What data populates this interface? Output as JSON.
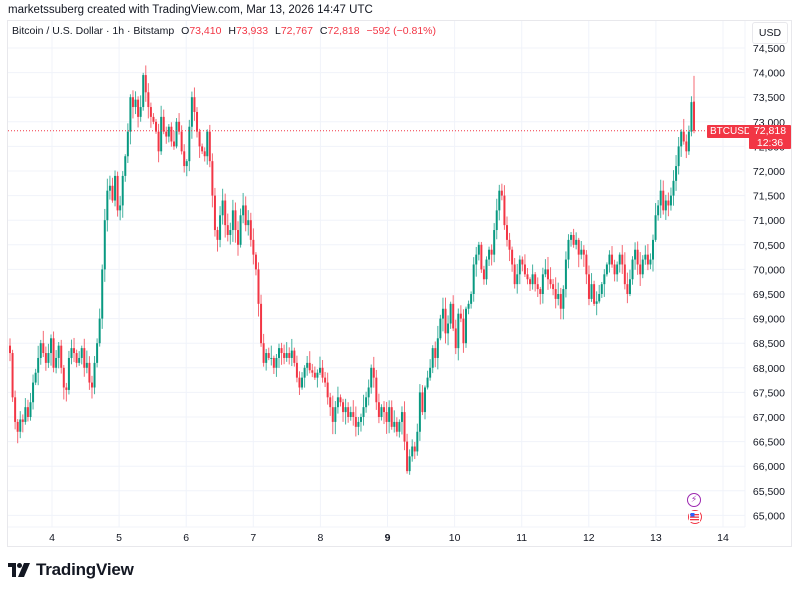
{
  "header": {
    "credit": "marketssuberg created with TradingView.com, Mar 13, 2026 14:47 UTC"
  },
  "legend": {
    "symbol_desc": "Bitcoin / U.S. Dollar · 1h · Bitstamp",
    "o_label": "O",
    "o_value": "73,410",
    "h_label": "H",
    "h_value": "73,933",
    "l_label": "L",
    "l_value": "72,767",
    "c_label": "C",
    "c_value": "72,818",
    "change": "−592 (−0.81%)"
  },
  "price_axis": {
    "currency": "USD",
    "labels": [
      "74,500",
      "74,000",
      "73,500",
      "73,000",
      "72,500",
      "72,000",
      "71,500",
      "71,000",
      "70,500",
      "70,000",
      "69,500",
      "69,000",
      "68,500",
      "68,000",
      "67,500",
      "67,000",
      "66,500",
      "66,000",
      "65,500",
      "65,000"
    ]
  },
  "last_price_tag": {
    "symbol": "BTCUSD",
    "price": "72,818",
    "countdown": "12:36"
  },
  "time_axis": {
    "labels": [
      "4",
      "5",
      "6",
      "7",
      "8",
      "9",
      "10",
      "11",
      "12",
      "13",
      "14"
    ],
    "bold_label": "9"
  },
  "events": [
    {
      "name": "economic-event-icon"
    },
    {
      "name": "us-flag-event-icon"
    }
  ],
  "branding": {
    "logo_text": "TradingView"
  },
  "colors": {
    "up": "#089981",
    "down": "#f23645",
    "grid": "#f0f3fa",
    "text": "#131722"
  },
  "chart_data": {
    "type": "candlestick",
    "title": "Bitcoin / U.S. Dollar · 1h · Bitstamp",
    "xlabel": "",
    "ylabel": "USD",
    "ylim": [
      64600,
      74900
    ],
    "x_ticks": [
      "4",
      "5",
      "6",
      "7",
      "8",
      "9",
      "10",
      "11",
      "12",
      "13",
      "14"
    ],
    "y_ticks": [
      65000,
      65500,
      66000,
      66500,
      67000,
      67500,
      68000,
      68500,
      69000,
      69500,
      70000,
      70500,
      71000,
      71500,
      72000,
      72500,
      73000,
      73500,
      74000,
      74500
    ],
    "last": {
      "open": 73410,
      "high": 73933,
      "low": 72767,
      "close": 72818,
      "change": -592,
      "change_pct": -0.81
    },
    "grid": true,
    "path_closes": [
      68300,
      67400,
      66900,
      66700,
      66950,
      66900,
      67200,
      67000,
      67300,
      67700,
      67900,
      68200,
      68500,
      68300,
      68100,
      68300,
      68600,
      68000,
      68200,
      68450,
      68000,
      67600,
      67550,
      68200,
      68400,
      68300,
      68100,
      68200,
      68400,
      68000,
      68100,
      67700,
      67600,
      68100,
      68500,
      69000,
      70000,
      71000,
      71600,
      71700,
      71400,
      71900,
      71200,
      71300,
      71900,
      72300,
      72800,
      73500,
      73300,
      73450,
      73100,
      73300,
      73950,
      73600,
      73300,
      73100,
      73000,
      72800,
      72400,
      73100,
      72800,
      72700,
      72900,
      72600,
      72500,
      73000,
      72800,
      72400,
      72100,
      72200,
      72900,
      73500,
      73200,
      72800,
      72500,
      72400,
      72300,
      72800,
      72200,
      71500,
      70800,
      70600,
      71100,
      71400,
      70900,
      70700,
      70800,
      71200,
      70800,
      70500,
      71100,
      71300,
      70900,
      71000,
      70600,
      70300,
      70000,
      69300,
      68500,
      68100,
      68300,
      68200,
      68200,
      68000,
      68200,
      68400,
      68300,
      68200,
      68300,
      68200,
      68350,
      68100,
      67800,
      67600,
      67800,
      68000,
      68100,
      67950,
      67900,
      67800,
      67900,
      68000,
      67800,
      67700,
      67400,
      67200,
      66900,
      67200,
      67400,
      67300,
      67100,
      67200,
      67000,
      67100,
      67000,
      66800,
      66900,
      67000,
      67200,
      67400,
      67600,
      68000,
      67800,
      67300,
      67000,
      67200,
      67100,
      66900,
      67200,
      66800,
      66900,
      66700,
      66900,
      67100,
      66500,
      65900,
      66200,
      66400,
      66300,
      66700,
      67500,
      67100,
      67600,
      67800,
      68000,
      68400,
      68200,
      68600,
      69000,
      69200,
      68700,
      68900,
      69300,
      68800,
      68400,
      69100,
      69000,
      68500,
      69200,
      69300,
      69500,
      70100,
      70300,
      70500,
      70000,
      69800,
      70200,
      70400,
      70300,
      70800,
      71200,
      71600,
      71500,
      70900,
      70600,
      70400,
      70100,
      69700,
      69900,
      70200,
      70100,
      69900,
      69800,
      69700,
      69900,
      69700,
      69600,
      69500,
      69900,
      70000,
      69800,
      69700,
      69600,
      69400,
      69500,
      69200,
      69600,
      70200,
      70600,
      70700,
      70500,
      70600,
      70300,
      70400,
      70300,
      69900,
      69400,
      69700,
      69300,
      69350,
      69500,
      69700,
      69900,
      70100,
      70300,
      70100,
      69900,
      70100,
      70300,
      70100,
      69700,
      69500,
      69800,
      70200,
      70400,
      70100,
      69900,
      70200,
      70300,
      70100,
      70200,
      70600,
      71100,
      71300,
      71600,
      71200,
      71400,
      71300,
      71500,
      71800,
      72100,
      72500,
      72800,
      72600,
      72400,
      72800,
      73400,
      72818
    ]
  }
}
